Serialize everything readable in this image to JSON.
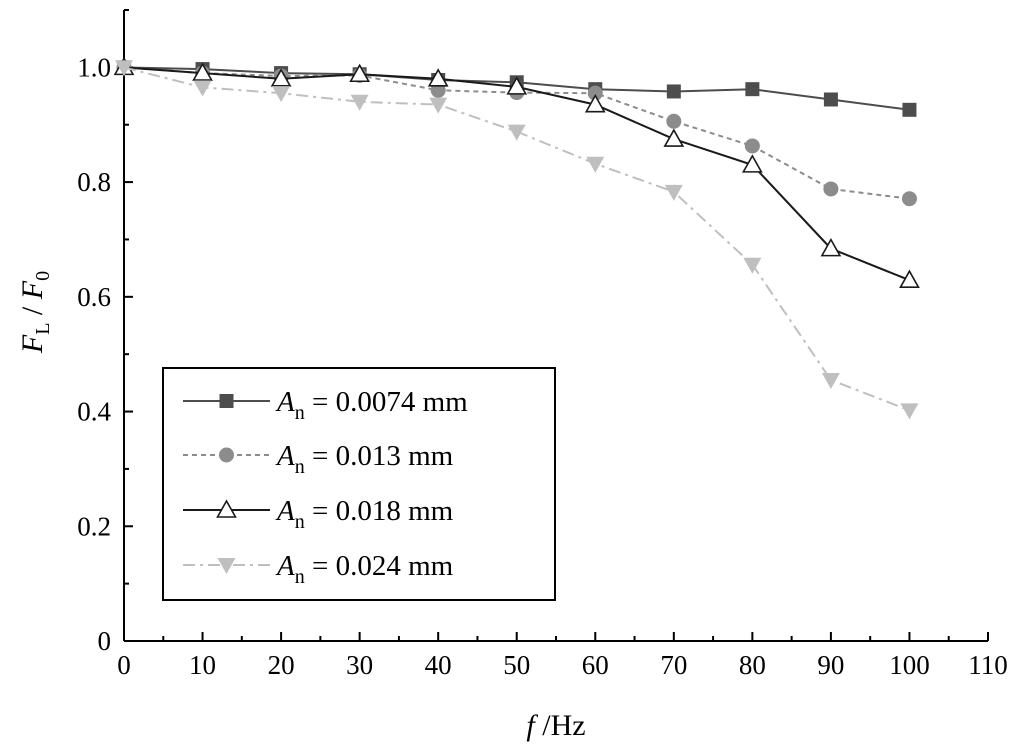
{
  "chart_data": {
    "type": "line",
    "x": [
      0,
      10,
      20,
      30,
      40,
      50,
      60,
      70,
      80,
      90,
      100
    ],
    "xlim": [
      0,
      110
    ],
    "ylim": [
      0,
      1.1
    ],
    "xticks": [
      "0",
      "10",
      "20",
      "30",
      "40",
      "50",
      "60",
      "70",
      "80",
      "90",
      "100",
      "110"
    ],
    "yticks": [
      "0",
      "0.2",
      "0.4",
      "0.6",
      "0.8",
      "1.0"
    ],
    "xlabel": {
      "var": "f",
      "rest": " /Hz"
    },
    "ylabel": {
      "v1": "F",
      "s1": "L",
      "sep": " / ",
      "v2": "F",
      "s2": "0"
    },
    "legend_position": "lower-left",
    "series": [
      {
        "name": "An = 0.0074 mm",
        "label": {
          "var": "A",
          "sub": "n",
          "rest": " = 0.0074 mm"
        },
        "marker": "square",
        "style": "solid",
        "color": "#4d4d4d",
        "values": [
          1.0,
          0.997,
          0.99,
          0.988,
          0.978,
          0.974,
          0.962,
          0.958,
          0.962,
          0.944,
          0.926
        ]
      },
      {
        "name": "An = 0.013 mm",
        "label": {
          "var": "A",
          "sub": "n",
          "rest": " = 0.013 mm"
        },
        "marker": "circle",
        "style": "dotted",
        "color": "#8c8c8c",
        "values": [
          1.0,
          0.99,
          0.985,
          0.986,
          0.96,
          0.956,
          0.955,
          0.906,
          0.863,
          0.788,
          0.771
        ]
      },
      {
        "name": "An = 0.018 mm",
        "label": {
          "var": "A",
          "sub": "n",
          "rest": " = 0.018 mm"
        },
        "marker": "triangle-up",
        "style": "solid",
        "color": "#1a1a1a",
        "values": [
          1.0,
          0.99,
          0.98,
          0.988,
          0.98,
          0.966,
          0.935,
          0.875,
          0.83,
          0.684,
          0.629
        ]
      },
      {
        "name": "An = 0.024 mm",
        "label": {
          "var": "A",
          "sub": "n",
          "rest": " = 0.024 mm"
        },
        "marker": "triangle-down",
        "style": "dashdot",
        "color": "#bfbfbf",
        "values": [
          1.0,
          0.965,
          0.955,
          0.94,
          0.935,
          0.888,
          0.832,
          0.783,
          0.656,
          0.455,
          0.402
        ]
      }
    ]
  }
}
